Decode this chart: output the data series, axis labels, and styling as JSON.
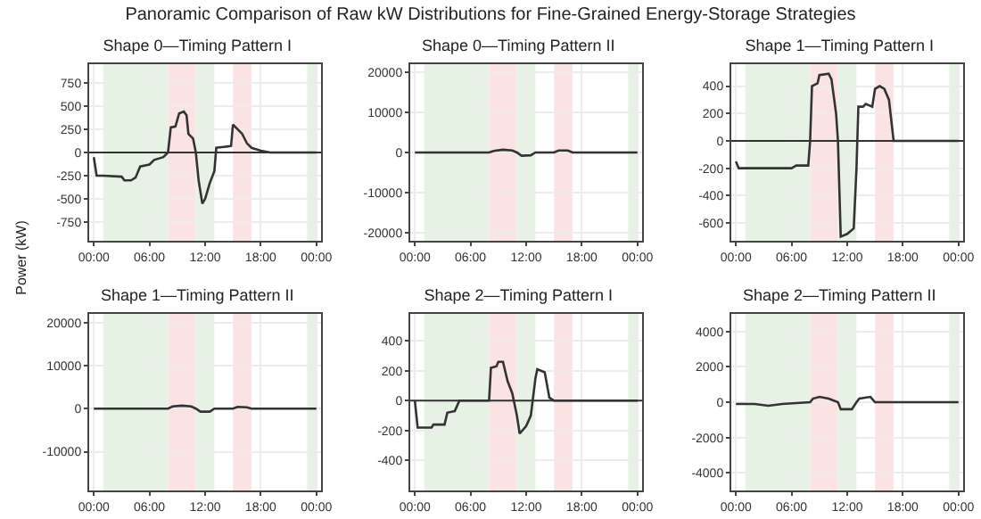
{
  "chart_data": [
    {
      "type": "line",
      "title": "Shape 0—Timing Pattern I",
      "ylabel": "Power (kW)",
      "annotations": [
        "Panoramic Comparison of Raw kW Distributions for Fine-Grained Energy-Storage Strategies"
      ],
      "x": [
        0,
        0.3,
        1,
        3,
        3.3,
        4,
        4.5,
        5,
        6,
        6.5,
        7.5,
        8,
        8.3,
        8.8,
        9.2,
        9.7,
        10,
        10.2,
        10.7,
        11,
        11.3,
        11.7,
        12,
        12.5,
        13,
        13.2,
        14,
        14.8,
        15,
        15.5,
        16,
        16.5,
        17,
        18,
        19,
        24
      ],
      "series": [
        {
          "color": "#333333",
          "values": [
            -50,
            -250,
            -250,
            -260,
            -300,
            -300,
            -270,
            -150,
            -130,
            -80,
            -50,
            0,
            270,
            280,
            420,
            440,
            400,
            200,
            150,
            0,
            -300,
            -550,
            -500,
            -330,
            -200,
            50,
            60,
            70,
            300,
            250,
            200,
            100,
            50,
            20,
            0,
            0
          ]
        }
      ],
      "xlim": [
        -0.5,
        24.5
      ],
      "xticks": [
        {
          "value": 0,
          "label": "00:00"
        },
        {
          "value": 6,
          "label": "06:00"
        },
        {
          "value": 12,
          "label": "12:00"
        },
        {
          "value": 18,
          "label": "18:00"
        },
        {
          "value": 24,
          "label": "00:00"
        }
      ],
      "ylim": [
        -950,
        950
      ],
      "yticks": [
        -750,
        -500,
        -250,
        0,
        250,
        500,
        750
      ],
      "grid": true,
      "ref_lines": [
        {
          "axis": "y",
          "value": 0,
          "color": "#333333"
        }
      ],
      "bands": [
        {
          "axis": "x",
          "from": 1,
          "to": 8,
          "color": "#e6f2e3"
        },
        {
          "axis": "x",
          "from": 8,
          "to": 11,
          "color": "#fbe3e3"
        },
        {
          "axis": "x",
          "from": 11,
          "to": 13,
          "color": "#e6f2e3"
        },
        {
          "axis": "x",
          "from": 15,
          "to": 17,
          "color": "#fbe3e3"
        },
        {
          "axis": "x",
          "from": 23,
          "to": 24,
          "color": "#e6f2e3"
        }
      ]
    },
    {
      "type": "line",
      "title": "Shape 0—Timing Pattern II",
      "x": [
        0,
        8,
        8.5,
        9.5,
        10.5,
        11,
        11.5,
        12.5,
        13,
        15,
        15.5,
        16.5,
        17,
        24
      ],
      "series": [
        {
          "color": "#333333",
          "values": [
            0,
            0,
            400,
            700,
            500,
            0,
            -800,
            -700,
            0,
            0,
            500,
            500,
            0,
            0
          ]
        }
      ],
      "xlim": [
        -0.5,
        24.5
      ],
      "xticks": [
        {
          "value": 0,
          "label": "00:00"
        },
        {
          "value": 6,
          "label": "06:00"
        },
        {
          "value": 12,
          "label": "12:00"
        },
        {
          "value": 18,
          "label": "18:00"
        },
        {
          "value": 24,
          "label": "00:00"
        }
      ],
      "ylim": [
        -22000,
        22000
      ],
      "yticks": [
        -20000,
        -10000,
        0,
        10000,
        20000
      ],
      "grid": true,
      "bands": [
        {
          "axis": "x",
          "from": 1,
          "to": 8,
          "color": "#e6f2e3"
        },
        {
          "axis": "x",
          "from": 8,
          "to": 11,
          "color": "#fbe3e3"
        },
        {
          "axis": "x",
          "from": 11,
          "to": 13,
          "color": "#e6f2e3"
        },
        {
          "axis": "x",
          "from": 15,
          "to": 17,
          "color": "#fbe3e3"
        },
        {
          "axis": "x",
          "from": 23,
          "to": 24,
          "color": "#e6f2e3"
        }
      ]
    },
    {
      "type": "line",
      "title": "Shape 1—Timing Pattern I",
      "x": [
        0,
        0.3,
        6,
        6.5,
        7.8,
        8,
        8.2,
        8.8,
        9,
        10,
        10.3,
        10.8,
        11,
        11.3,
        12,
        12.7,
        13,
        13.2,
        13.7,
        14,
        14.7,
        15,
        15.5,
        16,
        16.5,
        17,
        24
      ],
      "series": [
        {
          "color": "#333333",
          "values": [
            -150,
            -200,
            -200,
            -180,
            -180,
            0,
            400,
            420,
            480,
            490,
            450,
            200,
            0,
            -700,
            -680,
            -640,
            -200,
            250,
            250,
            270,
            250,
            380,
            400,
            380,
            300,
            0,
            0
          ]
        }
      ],
      "xlim": [
        -0.5,
        24.5
      ],
      "xticks": [
        {
          "value": 0,
          "label": "00:00"
        },
        {
          "value": 6,
          "label": "06:00"
        },
        {
          "value": 12,
          "label": "12:00"
        },
        {
          "value": 18,
          "label": "18:00"
        },
        {
          "value": 24,
          "label": "00:00"
        }
      ],
      "ylim": [
        -730,
        560
      ],
      "yticks": [
        -600,
        -400,
        -200,
        0,
        200,
        400
      ],
      "grid": true,
      "ref_lines": [
        {
          "axis": "y",
          "value": 0,
          "color": "#333333"
        }
      ],
      "bands": [
        {
          "axis": "x",
          "from": 1,
          "to": 8,
          "color": "#e6f2e3"
        },
        {
          "axis": "x",
          "from": 8,
          "to": 11,
          "color": "#fbe3e3"
        },
        {
          "axis": "x",
          "from": 11,
          "to": 13,
          "color": "#e6f2e3"
        },
        {
          "axis": "x",
          "from": 15,
          "to": 17,
          "color": "#fbe3e3"
        },
        {
          "axis": "x",
          "from": 23,
          "to": 24,
          "color": "#e6f2e3"
        }
      ]
    },
    {
      "type": "line",
      "title": "Shape 1—Timing Pattern II",
      "x": [
        0,
        8,
        8.5,
        9.5,
        10.5,
        11,
        11.5,
        12.5,
        13,
        15,
        15.5,
        16.5,
        17,
        24
      ],
      "series": [
        {
          "color": "#333333",
          "values": [
            0,
            0,
            500,
            700,
            500,
            0,
            -700,
            -700,
            0,
            0,
            400,
            300,
            0,
            0
          ]
        }
      ],
      "xlim": [
        -0.5,
        24.5
      ],
      "xticks": [
        {
          "value": 0,
          "label": "00:00"
        },
        {
          "value": 6,
          "label": "06:00"
        },
        {
          "value": 12,
          "label": "12:00"
        },
        {
          "value": 18,
          "label": "18:00"
        },
        {
          "value": 24,
          "label": "00:00"
        }
      ],
      "ylim": [
        -19000,
        22000
      ],
      "yticks": [
        -10000,
        0,
        10000,
        20000
      ],
      "grid": true,
      "bands": [
        {
          "axis": "x",
          "from": 1,
          "to": 8,
          "color": "#e6f2e3"
        },
        {
          "axis": "x",
          "from": 8,
          "to": 11,
          "color": "#fbe3e3"
        },
        {
          "axis": "x",
          "from": 11,
          "to": 13,
          "color": "#e6f2e3"
        },
        {
          "axis": "x",
          "from": 15,
          "to": 17,
          "color": "#fbe3e3"
        },
        {
          "axis": "x",
          "from": 23,
          "to": 24,
          "color": "#e6f2e3"
        }
      ]
    },
    {
      "type": "line",
      "title": "Shape 2—Timing Pattern I",
      "x": [
        0,
        0.3,
        1.8,
        2,
        3.2,
        3.5,
        4.3,
        4.8,
        8,
        8.2,
        8.8,
        9,
        9.5,
        10,
        10.5,
        11,
        11.3,
        12,
        12.5,
        13,
        13.2,
        14,
        14.5,
        15,
        24
      ],
      "series": [
        {
          "color": "#333333",
          "values": [
            0,
            -180,
            -180,
            -160,
            -160,
            -80,
            -70,
            0,
            0,
            220,
            230,
            260,
            260,
            130,
            50,
            -100,
            -220,
            -170,
            -100,
            150,
            210,
            190,
            20,
            0,
            0
          ]
        }
      ],
      "xlim": [
        -0.5,
        24.5
      ],
      "xticks": [
        {
          "value": 0,
          "label": "00:00"
        },
        {
          "value": 6,
          "label": "06:00"
        },
        {
          "value": 12,
          "label": "12:00"
        },
        {
          "value": 18,
          "label": "18:00"
        },
        {
          "value": 24,
          "label": "00:00"
        }
      ],
      "ylim": [
        -600,
        580
      ],
      "yticks": [
        -400,
        -200,
        0,
        200,
        400
      ],
      "grid": true,
      "ref_lines": [
        {
          "axis": "y",
          "value": 0,
          "color": "#333333"
        }
      ],
      "bands": [
        {
          "axis": "x",
          "from": 1,
          "to": 8,
          "color": "#e6f2e3"
        },
        {
          "axis": "x",
          "from": 8,
          "to": 11,
          "color": "#fbe3e3"
        },
        {
          "axis": "x",
          "from": 11,
          "to": 13,
          "color": "#e6f2e3"
        },
        {
          "axis": "x",
          "from": 15,
          "to": 17,
          "color": "#fbe3e3"
        },
        {
          "axis": "x",
          "from": 23,
          "to": 24,
          "color": "#e6f2e3"
        }
      ]
    },
    {
      "type": "line",
      "title": "Shape 2—Timing Pattern II",
      "x": [
        0,
        2,
        3.5,
        5,
        8,
        8.3,
        9,
        10,
        11,
        11.3,
        12.5,
        13,
        13.3,
        14.5,
        15,
        24
      ],
      "series": [
        {
          "color": "#333333",
          "values": [
            -100,
            -100,
            -200,
            -100,
            0,
            200,
            300,
            200,
            0,
            -400,
            -400,
            0,
            200,
            300,
            0,
            0
          ]
        }
      ],
      "xlim": [
        -0.5,
        24.5
      ],
      "xticks": [
        {
          "value": 0,
          "label": "00:00"
        },
        {
          "value": 6,
          "label": "06:00"
        },
        {
          "value": 12,
          "label": "12:00"
        },
        {
          "value": 18,
          "label": "18:00"
        },
        {
          "value": 24,
          "label": "00:00"
        }
      ],
      "ylim": [
        -5000,
        5000
      ],
      "yticks": [
        -4000,
        -2000,
        0,
        2000,
        4000
      ],
      "grid": true,
      "bands": [
        {
          "axis": "x",
          "from": 1,
          "to": 8,
          "color": "#e6f2e3"
        },
        {
          "axis": "x",
          "from": 8,
          "to": 11,
          "color": "#fbe3e3"
        },
        {
          "axis": "x",
          "from": 11,
          "to": 13,
          "color": "#e6f2e3"
        },
        {
          "axis": "x",
          "from": 15,
          "to": 17,
          "color": "#fbe3e3"
        },
        {
          "axis": "x",
          "from": 23,
          "to": 24,
          "color": "#e6f2e3"
        }
      ]
    }
  ]
}
